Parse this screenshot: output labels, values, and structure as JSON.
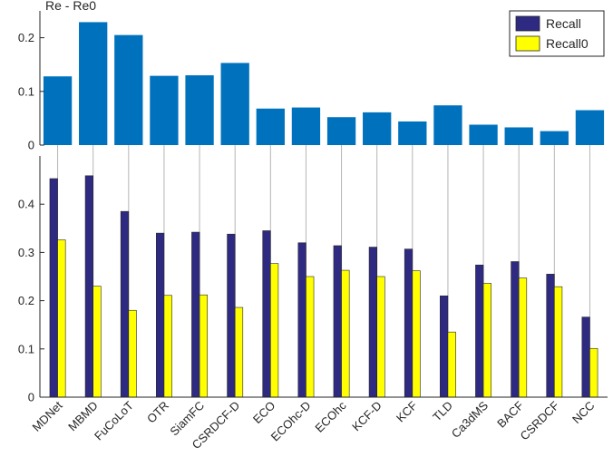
{
  "chart_data": [
    {
      "type": "bar",
      "title": "Re - Re0",
      "categories": [
        "MDNet",
        "MBMD",
        "FuCoLoT",
        "OTR",
        "SiamFC",
        "CSRDCF-D",
        "ECO",
        "ECOhc-D",
        "ECOhc",
        "KCF-D",
        "KCF",
        "TLD",
        "Ca3dMS",
        "BACF",
        "CSRDCF",
        "NCC"
      ],
      "values": [
        0.128,
        0.229,
        0.205,
        0.129,
        0.13,
        0.153,
        0.068,
        0.07,
        0.052,
        0.061,
        0.044,
        0.074,
        0.038,
        0.033,
        0.026,
        0.065
      ],
      "ylim": [
        0,
        0.25
      ],
      "yticks": [
        "0",
        "0.1",
        "0.2"
      ],
      "ytick_values": [
        0,
        0.1,
        0.2
      ],
      "color": "#0072BD",
      "grid": false
    },
    {
      "type": "bar",
      "categories": [
        "MDNet",
        "MBMD",
        "FuCoLoT",
        "OTR",
        "SiamFC",
        "CSRDCF-D",
        "ECO",
        "ECOhc-D",
        "ECOhc",
        "KCF-D",
        "KCF",
        "TLD",
        "Ca3dMS",
        "BACF",
        "CSRDCF",
        "NCC"
      ],
      "series": [
        {
          "name": "Recall",
          "color": "#2e2a82",
          "values": [
            0.453,
            0.459,
            0.385,
            0.34,
            0.342,
            0.338,
            0.345,
            0.32,
            0.314,
            0.311,
            0.307,
            0.21,
            0.274,
            0.281,
            0.255,
            0.166
          ]
        },
        {
          "name": "Recall0",
          "color": "#ffff00",
          "values": [
            0.326,
            0.23,
            0.18,
            0.211,
            0.212,
            0.186,
            0.277,
            0.25,
            0.263,
            0.25,
            0.262,
            0.135,
            0.236,
            0.247,
            0.229,
            0.101
          ]
        }
      ],
      "ylim": [
        0,
        0.5
      ],
      "yticks": [
        "0",
        "0.1",
        "0.2",
        "0.3",
        "0.4"
      ],
      "ytick_values": [
        0,
        0.1,
        0.2,
        0.3,
        0.4
      ],
      "legend": "top-right",
      "grid": "vertical connector lines at each category"
    }
  ]
}
